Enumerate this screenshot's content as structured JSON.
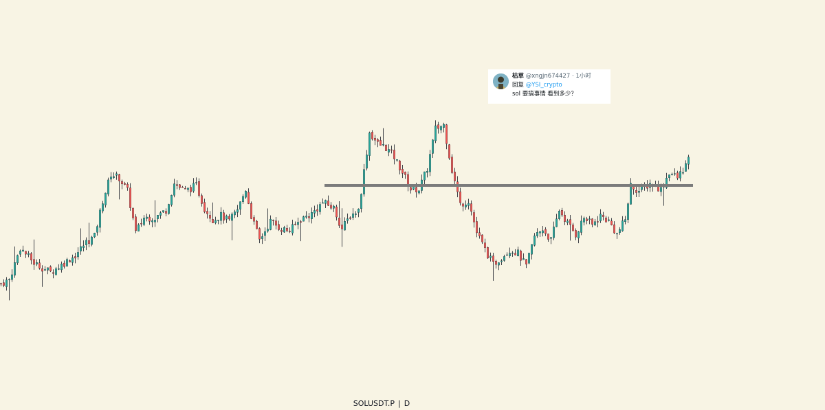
{
  "chart_data": {
    "type": "candlestick",
    "symbol": "SOLUSDT.P",
    "interval": "D",
    "separator": "|",
    "x_range": [
      0,
      300
    ],
    "y_range": [
      0,
      100
    ],
    "grid": false,
    "colors": {
      "up": "#26a69a",
      "down": "#ef5350",
      "wick": "#131722",
      "level_line": "#7b7b7b",
      "background": "#f8f4e4"
    },
    "close_path": [
      [
        0,
        8
      ],
      [
        3,
        10
      ],
      [
        7,
        27
      ],
      [
        12,
        19
      ],
      [
        18,
        14
      ],
      [
        22,
        18
      ],
      [
        27,
        23
      ],
      [
        31,
        30
      ],
      [
        34,
        33
      ],
      [
        37,
        52
      ],
      [
        40,
        66
      ],
      [
        43,
        64
      ],
      [
        46,
        57
      ],
      [
        49,
        35
      ],
      [
        52,
        43
      ],
      [
        56,
        43
      ],
      [
        60,
        47
      ],
      [
        63,
        61
      ],
      [
        67,
        57
      ],
      [
        71,
        60
      ],
      [
        74,
        48
      ],
      [
        77,
        42
      ],
      [
        80,
        44
      ],
      [
        83,
        41
      ],
      [
        86,
        47
      ],
      [
        89,
        58
      ],
      [
        91,
        44
      ],
      [
        94,
        31
      ],
      [
        98,
        41
      ],
      [
        102,
        37
      ],
      [
        105,
        36
      ],
      [
        109,
        42
      ],
      [
        113,
        45
      ],
      [
        117,
        51
      ],
      [
        121,
        48
      ],
      [
        124,
        37
      ],
      [
        127,
        44
      ],
      [
        130,
        47
      ],
      [
        134,
        88
      ],
      [
        137,
        82
      ],
      [
        140,
        80
      ],
      [
        143,
        75
      ],
      [
        146,
        67
      ],
      [
        149,
        58
      ],
      [
        152,
        58
      ],
      [
        155,
        69
      ],
      [
        158,
        90
      ],
      [
        161,
        92
      ],
      [
        164,
        68
      ],
      [
        167,
        50
      ],
      [
        170,
        52
      ],
      [
        173,
        35
      ],
      [
        176,
        26
      ],
      [
        179,
        18
      ],
      [
        182,
        22
      ],
      [
        185,
        26
      ],
      [
        188,
        24
      ],
      [
        191,
        17
      ],
      [
        194,
        33
      ],
      [
        197,
        37
      ],
      [
        200,
        31
      ],
      [
        203,
        47
      ],
      [
        206,
        40
      ],
      [
        209,
        34
      ],
      [
        212,
        43
      ],
      [
        215,
        39
      ],
      [
        218,
        44
      ],
      [
        221,
        41
      ],
      [
        224,
        34
      ],
      [
        227,
        42
      ],
      [
        229,
        60
      ],
      [
        232,
        57
      ],
      [
        236,
        61
      ],
      [
        240,
        58
      ],
      [
        243,
        67
      ],
      [
        246,
        64
      ],
      [
        250,
        73
      ]
    ],
    "horizontal_level": {
      "value": 60,
      "x_start": 118,
      "x_end": 252
    }
  },
  "reply_card": {
    "display_name": "枯草",
    "handle": "@xngjn674427",
    "dot": "·",
    "time": "1小时",
    "reply_prefix": "回复",
    "reply_to": "@YSI_crypto",
    "message": "sol 要搞事情 看到多少？"
  }
}
